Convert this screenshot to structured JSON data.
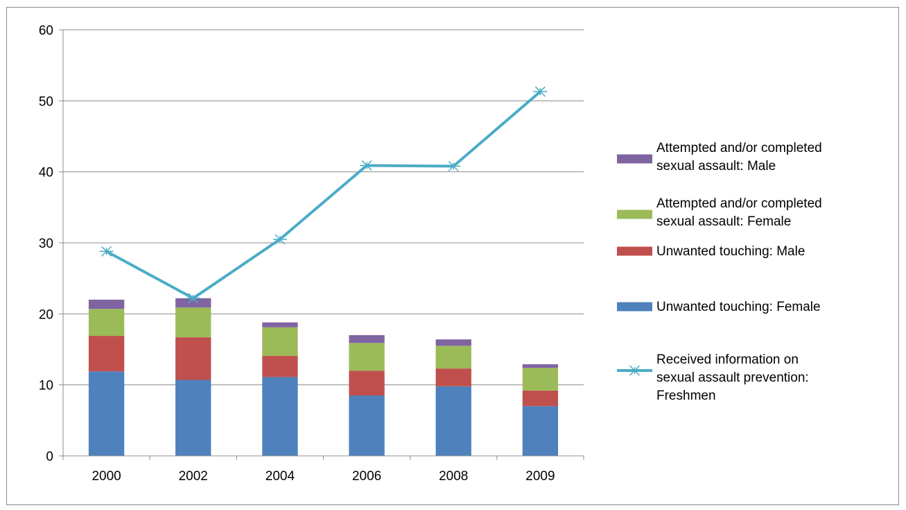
{
  "chart_data": {
    "type": "bar",
    "stacked": true,
    "categories": [
      "2000",
      "2002",
      "2004",
      "2006",
      "2008",
      "2009"
    ],
    "ylim": [
      0,
      60
    ],
    "yticks": [
      0,
      10,
      20,
      30,
      40,
      50,
      60
    ],
    "grid": true,
    "legend_placement": "right",
    "series": [
      {
        "name": "Unwanted touching: Female",
        "type": "bar",
        "color": "#4f81bd",
        "values": [
          11.9,
          10.7,
          11.1,
          8.5,
          9.8,
          7.0
        ]
      },
      {
        "name": "Unwanted touching: Male",
        "type": "bar",
        "color": "#c0504d",
        "values": [
          5.0,
          6.0,
          3.0,
          3.5,
          2.5,
          2.2
        ]
      },
      {
        "name": "Attempted and/or completed sexual assault:  Female",
        "type": "bar",
        "color": "#9bbb59",
        "values": [
          3.8,
          4.2,
          4.0,
          3.9,
          3.2,
          3.2
        ]
      },
      {
        "name": "Attempted and/or completed sexual assault:  Male",
        "type": "bar",
        "color": "#8064a2",
        "values": [
          1.3,
          1.3,
          0.7,
          1.1,
          0.9,
          0.5
        ]
      },
      {
        "name": "Received information on sexual assault prevention:  Freshmen",
        "type": "line",
        "marker": "asterisk",
        "color": "#4bacc6",
        "values": [
          28.8,
          22.2,
          30.5,
          40.9,
          40.8,
          51.3
        ]
      }
    ]
  }
}
